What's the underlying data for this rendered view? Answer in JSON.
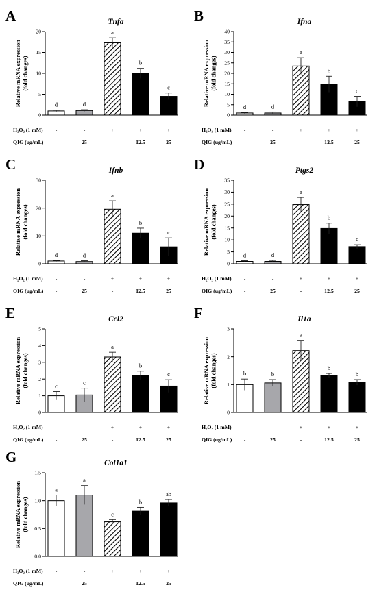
{
  "treatment_rows": [
    {
      "label": "H₂O₂ (1 mM)",
      "values": [
        "-",
        "-",
        "+",
        "+",
        "+"
      ]
    },
    {
      "label": "QIG (ug/mL)",
      "values": [
        "-",
        "25",
        "-",
        "12.5",
        "25"
      ]
    }
  ],
  "bar_styles": [
    "white",
    "gray",
    "hatched",
    "black",
    "black"
  ],
  "colors": {
    "gray_bar": "#a7a7ab",
    "black_bar": "#000000",
    "white_bar": "#ffffff"
  },
  "chart_data": [
    {
      "type": "bar",
      "panel": "A",
      "title": "Tnfa",
      "ylabel": "Relative mRNA expression\n(fold changes)",
      "ylim": [
        0,
        20
      ],
      "yticks": [
        "0",
        "5",
        "10",
        "15",
        "20"
      ],
      "values": [
        1.0,
        1.1,
        17.3,
        10.0,
        4.5
      ],
      "errors": [
        0.2,
        0.2,
        1.2,
        1.2,
        0.8
      ],
      "letters": [
        "d",
        "d",
        "a",
        "b",
        "c"
      ]
    },
    {
      "type": "bar",
      "panel": "B",
      "title": "Ifna",
      "ylabel": "Relative mRNA expression\n(fold changes)",
      "ylim": [
        0,
        40
      ],
      "yticks": [
        "0",
        "5",
        "10",
        "15",
        "20",
        "25",
        "30",
        "35",
        "40"
      ],
      "values": [
        1.0,
        1.0,
        23.5,
        14.8,
        6.5
      ],
      "errors": [
        0.3,
        0.5,
        4.0,
        3.8,
        2.5
      ],
      "letters": [
        "d",
        "d",
        "a",
        "b",
        "c"
      ]
    },
    {
      "type": "bar",
      "panel": "C",
      "title": "Ifnb",
      "ylabel": "Relative mRNA expression\n(fold changes)",
      "ylim": [
        0,
        30
      ],
      "yticks": [
        "0",
        "10",
        "20",
        "30"
      ],
      "values": [
        1.0,
        0.8,
        19.6,
        11.0,
        6.1
      ],
      "errors": [
        0.2,
        0.3,
        3.0,
        1.8,
        3.2
      ],
      "letters": [
        "d",
        "d",
        "a",
        "b",
        "c"
      ]
    },
    {
      "type": "bar",
      "panel": "D",
      "title": "Ptgs2",
      "ylabel": "Relative mRNA expression\n(fold changes)",
      "ylim": [
        0,
        35
      ],
      "yticks": [
        "0",
        "5",
        "10",
        "15",
        "20",
        "25",
        "30",
        "35"
      ],
      "values": [
        1.0,
        1.0,
        24.8,
        14.8,
        7.2
      ],
      "errors": [
        0.3,
        0.4,
        3.0,
        2.2,
        0.8
      ],
      "letters": [
        "d",
        "d",
        "a",
        "b",
        "c"
      ]
    },
    {
      "type": "bar",
      "panel": "E",
      "title": "Ccl2",
      "ylabel": "Relative mRNA expression\n(fold changes)",
      "ylim": [
        0,
        5
      ],
      "yticks": [
        "0",
        "1",
        "2",
        "3",
        "4",
        "5"
      ],
      "values": [
        1.0,
        1.05,
        3.32,
        2.22,
        1.58
      ],
      "errors": [
        0.25,
        0.4,
        0.28,
        0.25,
        0.38
      ],
      "letters": [
        "c",
        "c",
        "a",
        "b",
        "c"
      ]
    },
    {
      "type": "bar",
      "panel": "F",
      "title": "Il1a",
      "ylabel": "Relative mRNA expression\n(fold changes)",
      "ylim": [
        0,
        3
      ],
      "yticks": [
        "0",
        "1",
        "2",
        "3"
      ],
      "values": [
        1.0,
        1.06,
        2.22,
        1.33,
        1.08
      ],
      "errors": [
        0.2,
        0.12,
        0.37,
        0.07,
        0.1
      ],
      "letters": [
        "b",
        "b",
        "a",
        "b",
        "b"
      ]
    },
    {
      "type": "bar",
      "panel": "G",
      "title": "Col1a1",
      "ylabel": "Relative mRNA expression\n(fold changes)",
      "ylim": [
        0,
        1.5
      ],
      "yticks": [
        "0.0",
        "0.5",
        "1.0",
        "1.5"
      ],
      "values": [
        1.0,
        1.1,
        0.62,
        0.81,
        0.96
      ],
      "errors": [
        0.1,
        0.17,
        0.04,
        0.07,
        0.06
      ],
      "letters": [
        "a",
        "a",
        "c",
        "b",
        "ab"
      ]
    }
  ]
}
